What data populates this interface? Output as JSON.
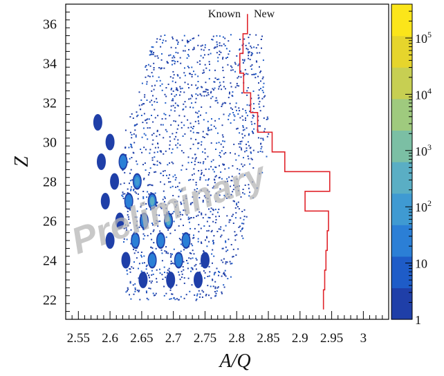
{
  "chart_data": {
    "type": "heatmap",
    "xlabel": "A/Q",
    "ylabel": "Z",
    "xlim": [
      2.53,
      3.04
    ],
    "ylim": [
      21.0,
      37.0
    ],
    "x_ticks": [
      "2.55",
      "2.6",
      "2.65",
      "2.7",
      "2.75",
      "2.8",
      "2.85",
      "2.9",
      "2.95",
      "3"
    ],
    "y_ticks": [
      "22",
      "24",
      "26",
      "28",
      "30",
      "32",
      "34",
      "36"
    ],
    "colorbar": {
      "scale": "log",
      "range": [
        1,
        400000
      ],
      "ticks": [
        {
          "value": 1,
          "label": "1"
        },
        {
          "value": 10,
          "label": "10"
        },
        {
          "value": 100,
          "label": "10",
          "exponent": "2"
        },
        {
          "value": 1000,
          "label": "10",
          "exponent": "3"
        },
        {
          "value": 10000,
          "label": "10",
          "exponent": "4"
        },
        {
          "value": 100000,
          "label": "10",
          "exponent": "5"
        }
      ],
      "colors": [
        "#1f3fa8",
        "#1e5cc8",
        "#2b7fd6",
        "#3f9ad2",
        "#5aaec4",
        "#7bbfa4",
        "#9fca7e",
        "#c7cf52",
        "#e6d52c",
        "#fbe51a"
      ]
    },
    "series": [
      {
        "name": "Known",
        "annotation_side": "left"
      },
      {
        "name": "New",
        "annotation_side": "right"
      }
    ],
    "boundary": {
      "color": "#e0242b",
      "z_edges": [
        21.5,
        22.5,
        23.5,
        24.5,
        25.5,
        26.5,
        27.5,
        28.5,
        29.5,
        30.5,
        31.5,
        32.5,
        33.5,
        34.5,
        35.5,
        36.5
      ],
      "aq_boundary": [
        2.937,
        2.939,
        2.941,
        2.943,
        2.945,
        2.908,
        2.947,
        2.876,
        2.856,
        2.833,
        2.822,
        2.811,
        2.805,
        2.81,
        2.817
      ]
    },
    "watermark": "Preliminary"
  }
}
